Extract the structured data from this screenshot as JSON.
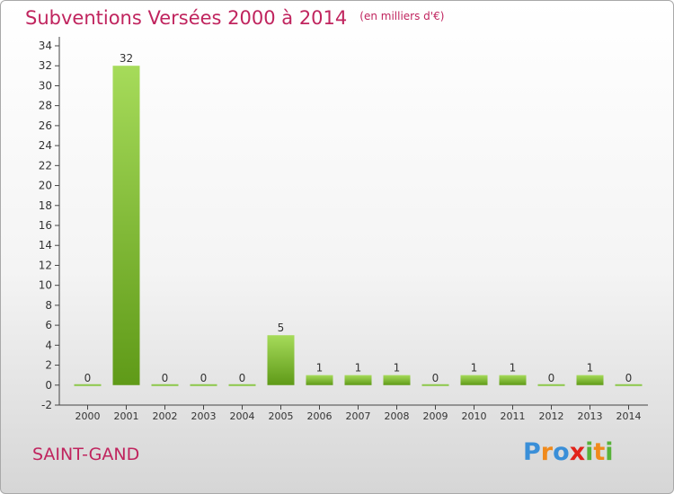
{
  "title": "Subventions Versées 2000 à 2014",
  "unit_note": "(en milliers d'€)",
  "commune": "SAINT-GAND",
  "logo": {
    "letters": [
      "P",
      "r",
      "o",
      "x",
      "i",
      "t",
      "i"
    ],
    "colors": [
      "#3a8fd8",
      "#f08a1c",
      "#3a8fd8",
      "#e2231a",
      "#58b23a",
      "#f08a1c",
      "#58b23a"
    ]
  },
  "colors": {
    "accent": "#c0245e",
    "bar_top": "#a6db5a",
    "bar_bottom": "#5f9a18"
  },
  "chart_data": {
    "type": "bar",
    "categories": [
      "2000",
      "2001",
      "2002",
      "2003",
      "2004",
      "2005",
      "2006",
      "2007",
      "2008",
      "2009",
      "2010",
      "2011",
      "2012",
      "2013",
      "2014"
    ],
    "values": [
      0,
      32,
      0,
      0,
      0,
      5,
      1,
      1,
      1,
      0,
      1,
      1,
      0,
      1,
      0
    ],
    "data_labels": [
      "0",
      "32",
      "0",
      "0",
      "0",
      "5",
      "1",
      "1",
      "1",
      "0",
      "1",
      "1",
      "0",
      "1",
      "0"
    ],
    "ylim": [
      -2,
      34
    ],
    "yticks": [
      -2,
      0,
      2,
      4,
      6,
      8,
      10,
      12,
      14,
      16,
      18,
      20,
      22,
      24,
      26,
      28,
      30,
      32,
      34
    ],
    "grid": false,
    "xlabel": "",
    "ylabel": ""
  }
}
